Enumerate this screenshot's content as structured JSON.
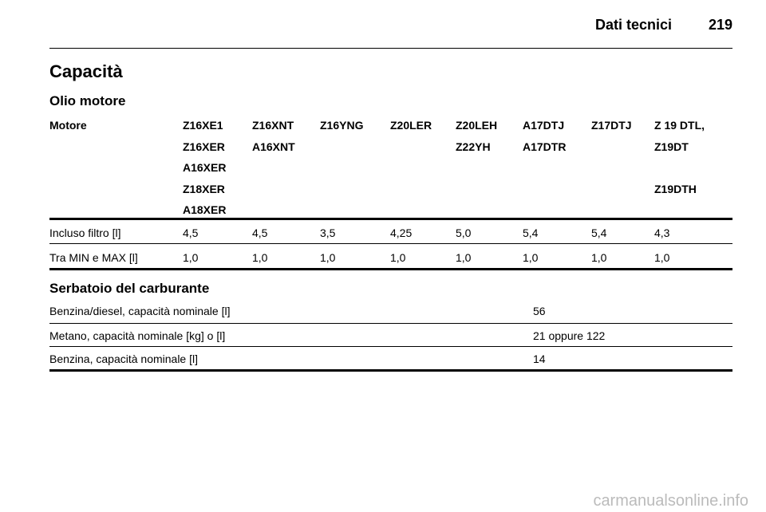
{
  "header": {
    "section": "Dati tecnici",
    "page": "219"
  },
  "title": "Capacità",
  "oil": {
    "subtitle": "Olio motore",
    "row_label": "Motore",
    "engines": [
      [
        "Z16XE1",
        "Z16XER",
        "A16XER",
        "Z18XER",
        "A18XER"
      ],
      [
        "Z16XNT",
        "A16XNT"
      ],
      [
        "Z16YNG"
      ],
      [
        "Z20LER"
      ],
      [
        "Z20LEH",
        "Z22YH"
      ],
      [
        "A17DTJ",
        "A17DTR"
      ],
      [
        "Z17DTJ"
      ],
      [
        "Z 19 DTL,",
        "Z19DT",
        "Z19DTH"
      ]
    ],
    "rows": [
      {
        "label": "Incluso filtro [l]",
        "values": [
          "4,5",
          "4,5",
          "3,5",
          "4,25",
          "5,0",
          "5,4",
          "5,4",
          "4,3"
        ]
      },
      {
        "label": "Tra MIN e MAX [l]",
        "values": [
          "1,0",
          "1,0",
          "1,0",
          "1,0",
          "1,0",
          "1,0",
          "1,0",
          "1,0"
        ]
      }
    ]
  },
  "tank": {
    "subtitle": "Serbatoio del carburante",
    "rows": [
      {
        "label": "Benzina/diesel, capacità nominale [l]",
        "value": "56"
      },
      {
        "label": "Metano, capacità nominale [kg] o [l]",
        "value": "21 oppure 122"
      },
      {
        "label": "Benzina, capacità nominale [l]",
        "value": "14"
      }
    ]
  },
  "watermark": "carmanualsonline.info"
}
